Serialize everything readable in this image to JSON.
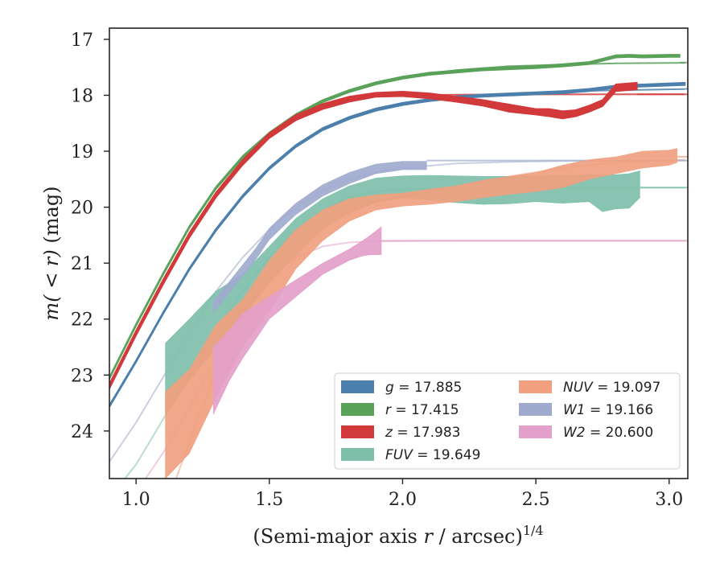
{
  "chart_data": {
    "type": "area",
    "xlabel_main": "(Semi-major axis ",
    "xlabel_var": "r",
    "xlabel_unit": " / arcsec)",
    "xlabel_exp": "1/4",
    "ylabel_main": "m",
    "ylabel_args": "( < r)",
    "ylabel_unit": " (mag)",
    "xlim": [
      0.9,
      3.07
    ],
    "ylim": [
      24.85,
      16.8
    ],
    "y_inverted": true,
    "xticks": [
      1.0,
      1.5,
      2.0,
      2.5,
      3.0
    ],
    "xtick_labels": [
      "1.0",
      "1.5",
      "2.0",
      "2.5",
      "3.0"
    ],
    "yticks": [
      17,
      18,
      19,
      20,
      21,
      22,
      23,
      24
    ],
    "ytick_labels": [
      "17",
      "18",
      "19",
      "20",
      "21",
      "22",
      "23",
      "24"
    ],
    "legend_position": "lower-right",
    "series": [
      {
        "name": "g = 17.885",
        "band": "g",
        "value": "17.885",
        "color": "#4c7fab",
        "asymptote": 17.885,
        "model_x": [
          0.9,
          1.0,
          1.1,
          1.2,
          1.3,
          1.4,
          1.5,
          1.6,
          1.7,
          1.8,
          1.9,
          2.0,
          2.1,
          2.2,
          2.4,
          2.6,
          2.8,
          3.06
        ],
        "model_y": [
          23.55,
          22.75,
          21.9,
          21.1,
          20.4,
          19.8,
          19.3,
          18.9,
          18.6,
          18.4,
          18.25,
          18.15,
          18.08,
          18.03,
          17.97,
          17.93,
          17.91,
          17.89
        ],
        "x": [
          0.9,
          1.0,
          1.1,
          1.2,
          1.3,
          1.4,
          1.5,
          1.6,
          1.7,
          1.8,
          1.9,
          2.0,
          2.1,
          2.2,
          2.3,
          2.4,
          2.5,
          2.6,
          2.7,
          2.8,
          2.9,
          3.06
        ],
        "lower": [
          23.53,
          22.73,
          21.88,
          21.08,
          20.38,
          19.78,
          19.28,
          18.88,
          18.58,
          18.38,
          18.23,
          18.13,
          18.06,
          18.01,
          17.98,
          17.96,
          17.94,
          17.92,
          17.88,
          17.82,
          17.8,
          17.77
        ],
        "upper": [
          23.58,
          22.78,
          21.93,
          21.13,
          20.43,
          19.83,
          19.33,
          18.93,
          18.63,
          18.43,
          18.28,
          18.18,
          18.11,
          18.06,
          18.03,
          18.01,
          17.99,
          17.97,
          17.93,
          17.87,
          17.85,
          17.82
        ]
      },
      {
        "name": "r = 17.415",
        "band": "r",
        "value": "17.415",
        "color": "#5aa15a",
        "asymptote": 17.415,
        "model_x": [
          0.9,
          1.0,
          1.1,
          1.2,
          1.3,
          1.4,
          1.5,
          1.6,
          1.7,
          1.8,
          1.9,
          2.0,
          2.2,
          2.4,
          2.6,
          2.8,
          3.06
        ],
        "model_y": [
          23.05,
          22.1,
          21.2,
          20.35,
          19.65,
          19.1,
          18.68,
          18.35,
          18.1,
          17.92,
          17.78,
          17.68,
          17.55,
          17.48,
          17.45,
          17.43,
          17.42
        ],
        "x": [
          0.9,
          1.0,
          1.1,
          1.2,
          1.3,
          1.4,
          1.5,
          1.6,
          1.7,
          1.8,
          1.9,
          2.0,
          2.1,
          2.2,
          2.3,
          2.4,
          2.5,
          2.6,
          2.7,
          2.75,
          2.8,
          2.85,
          2.9,
          3.0,
          3.04
        ],
        "lower": [
          23.03,
          22.08,
          21.18,
          20.33,
          19.63,
          19.08,
          18.66,
          18.33,
          18.08,
          17.9,
          17.76,
          17.66,
          17.59,
          17.55,
          17.51,
          17.49,
          17.47,
          17.44,
          17.4,
          17.34,
          17.28,
          17.27,
          17.28,
          17.27,
          17.27
        ],
        "upper": [
          23.08,
          22.13,
          21.23,
          20.38,
          19.68,
          19.13,
          18.71,
          18.38,
          18.13,
          17.95,
          17.81,
          17.71,
          17.64,
          17.6,
          17.56,
          17.54,
          17.52,
          17.49,
          17.45,
          17.39,
          17.33,
          17.32,
          17.33,
          17.32,
          17.32
        ]
      },
      {
        "name": "z = 17.983",
        "band": "z",
        "value": "17.983",
        "color": "#d2393a",
        "asymptote": 17.983,
        "model_x": [
          0.9,
          1.0,
          1.1,
          1.2,
          1.3,
          1.4,
          1.5,
          1.6,
          1.7,
          1.8,
          1.9,
          2.0,
          2.2,
          2.4,
          2.6,
          2.8,
          3.06
        ],
        "model_y": [
          23.2,
          22.25,
          21.35,
          20.5,
          19.78,
          19.2,
          18.72,
          18.4,
          18.2,
          18.07,
          18.02,
          18.0,
          17.99,
          17.985,
          17.984,
          17.983,
          17.983
        ],
        "x": [
          0.9,
          1.0,
          1.1,
          1.2,
          1.3,
          1.4,
          1.5,
          1.6,
          1.7,
          1.8,
          1.9,
          2.0,
          2.1,
          2.2,
          2.3,
          2.4,
          2.5,
          2.55,
          2.6,
          2.65,
          2.7,
          2.75,
          2.8,
          2.88
        ],
        "lower": [
          23.15,
          22.2,
          21.3,
          20.45,
          19.73,
          19.15,
          18.67,
          18.35,
          18.15,
          18.02,
          17.95,
          17.93,
          17.96,
          18.02,
          18.08,
          18.16,
          18.24,
          18.24,
          18.28,
          18.26,
          18.18,
          18.08,
          17.8,
          17.77
        ],
        "upper": [
          23.25,
          22.3,
          21.4,
          20.55,
          19.83,
          19.25,
          18.77,
          18.45,
          18.25,
          18.12,
          18.03,
          18.02,
          18.06,
          18.12,
          18.19,
          18.3,
          18.35,
          18.38,
          18.42,
          18.38,
          18.3,
          18.2,
          17.93,
          17.9
        ]
      },
      {
        "name": "FUV = 19.649",
        "band": "FUV",
        "value": "19.649",
        "color": "#7ebfaa",
        "asymptote": 19.649,
        "model_x": [
          0.9,
          1.0,
          1.1,
          1.2,
          1.3,
          1.4,
          1.5,
          1.6,
          1.7,
          1.8,
          1.9,
          2.0,
          2.2,
          2.6,
          3.06
        ],
        "model_y": [
          25.2,
          24.6,
          23.8,
          23.0,
          22.2,
          21.5,
          20.9,
          20.4,
          20.05,
          19.82,
          19.72,
          19.68,
          19.66,
          19.65,
          19.649
        ],
        "x": [
          1.11,
          1.2,
          1.3,
          1.4,
          1.5,
          1.6,
          1.7,
          1.8,
          1.9,
          2.0,
          2.1,
          2.2,
          2.3,
          2.4,
          2.5,
          2.6,
          2.7,
          2.75,
          2.8,
          2.85,
          2.89
        ],
        "lower": [
          22.43,
          22.0,
          21.5,
          21.2,
          20.7,
          20.2,
          19.85,
          19.62,
          19.48,
          19.44,
          19.43,
          19.44,
          19.45,
          19.45,
          19.44,
          19.43,
          19.42,
          19.42,
          19.42,
          19.4,
          19.35
        ],
        "upper": [
          23.7,
          23.1,
          22.5,
          21.95,
          21.35,
          20.85,
          20.4,
          20.1,
          19.92,
          19.83,
          19.87,
          19.92,
          19.95,
          19.94,
          19.9,
          19.93,
          19.9,
          20.08,
          20.03,
          20.02,
          19.83
        ]
      },
      {
        "name": "NUV = 19.097",
        "band": "NUV",
        "value": "19.097",
        "color": "#f0a07f",
        "asymptote": 19.097,
        "model_x": [
          1.1,
          1.2,
          1.3,
          1.4,
          1.5,
          1.6,
          1.7,
          1.8,
          1.9,
          2.0,
          2.2,
          2.4,
          2.6,
          2.8,
          3.06
        ],
        "model_y": [
          25.5,
          24.2,
          22.9,
          21.95,
          21.15,
          20.6,
          20.25,
          20.05,
          19.9,
          19.8,
          19.62,
          19.45,
          19.3,
          19.2,
          19.15
        ],
        "x": [
          1.11,
          1.2,
          1.3,
          1.4,
          1.5,
          1.6,
          1.7,
          1.8,
          1.9,
          2.0,
          2.1,
          2.2,
          2.3,
          2.4,
          2.5,
          2.6,
          2.7,
          2.8,
          2.9,
          3.0,
          3.03
        ],
        "lower": [
          23.3,
          22.9,
          22.1,
          21.65,
          20.95,
          20.4,
          20.05,
          19.85,
          19.78,
          19.75,
          19.68,
          19.62,
          19.52,
          19.45,
          19.38,
          19.25,
          19.15,
          19.1,
          19.0,
          18.98,
          18.95
        ],
        "upper": [
          24.85,
          24.4,
          23.4,
          22.5,
          21.85,
          21.1,
          20.6,
          20.25,
          20.05,
          19.98,
          19.95,
          19.9,
          19.83,
          19.77,
          19.72,
          19.65,
          19.5,
          19.4,
          19.3,
          19.25,
          19.2
        ]
      },
      {
        "name": "W1 = 19.166",
        "band": "W1",
        "value": "19.166",
        "color": "#9faace",
        "asymptote": 19.166,
        "model_x": [
          0.9,
          1.0,
          1.1,
          1.2,
          1.3,
          1.4,
          1.5,
          1.6,
          1.7,
          1.8,
          1.9,
          2.0,
          2.2,
          2.4,
          2.6,
          2.8,
          3.06
        ],
        "model_y": [
          24.55,
          23.85,
          23.05,
          22.25,
          21.5,
          20.9,
          20.4,
          20.0,
          19.7,
          19.5,
          19.38,
          19.3,
          19.22,
          19.19,
          19.175,
          19.168,
          19.166
        ],
        "x": [
          1.29,
          1.35,
          1.4,
          1.45,
          1.5,
          1.55,
          1.6,
          1.7,
          1.8,
          1.9,
          2.0,
          2.09
        ],
        "lower": [
          21.68,
          21.33,
          21.03,
          20.73,
          20.38,
          20.15,
          19.93,
          19.6,
          19.38,
          19.23,
          19.18,
          19.18
        ],
        "upper": [
          21.88,
          21.53,
          21.23,
          20.93,
          20.58,
          20.35,
          20.13,
          19.8,
          19.58,
          19.4,
          19.33,
          19.33
        ]
      },
      {
        "name": "W2 = 20.600",
        "band": "W2",
        "value": "20.600",
        "color": "#e3a0ca",
        "asymptote": 20.6,
        "model_x": [
          0.9,
          1.0,
          1.1,
          1.2,
          1.3,
          1.4,
          1.5,
          1.6,
          1.7,
          1.8,
          1.9,
          2.0,
          2.2,
          2.6,
          3.06
        ],
        "model_y": [
          25.6,
          25.1,
          24.4,
          23.6,
          22.7,
          21.9,
          21.25,
          20.9,
          20.7,
          20.63,
          20.61,
          20.605,
          20.6,
          20.6,
          20.6
        ],
        "x": [
          1.29,
          1.35,
          1.4,
          1.5,
          1.6,
          1.7,
          1.8,
          1.85,
          1.88,
          1.92
        ],
        "lower": [
          22.5,
          22.2,
          21.9,
          21.6,
          21.3,
          21.0,
          20.75,
          20.6,
          20.5,
          20.35
        ],
        "upper": [
          23.7,
          23.1,
          22.7,
          22.0,
          21.6,
          21.2,
          20.95,
          20.87,
          20.85,
          20.85
        ]
      }
    ]
  }
}
